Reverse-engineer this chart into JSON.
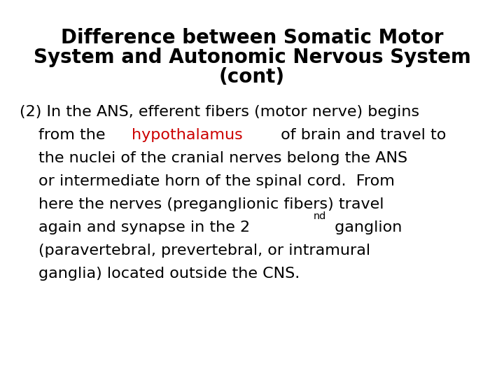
{
  "title_line1": "Difference between Somatic Motor",
  "title_line2": "System and Autonomic Nervous System",
  "title_line3": "(cont)",
  "title_color": "#000000",
  "title_fontsize": 20,
  "background_color": "#ffffff",
  "body_fontsize": 16,
  "body_color": "#000000",
  "highlight_color": "#cc0000"
}
